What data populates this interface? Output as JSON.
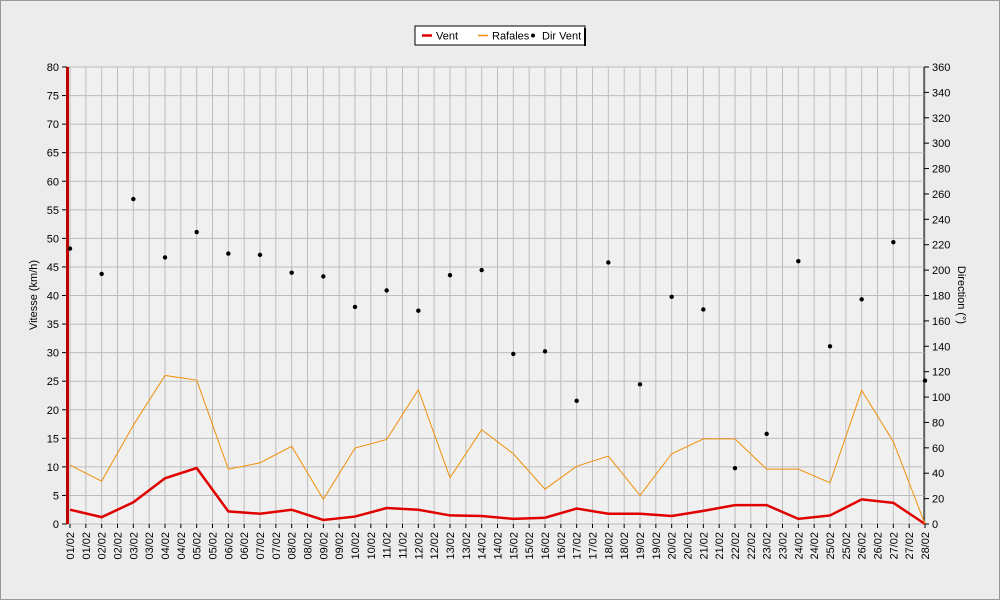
{
  "chart_data": {
    "type": "line",
    "x": [
      1,
      2,
      3,
      4,
      5,
      6,
      7,
      8,
      9,
      10,
      11,
      12,
      13,
      14,
      15,
      16,
      17,
      18,
      19,
      20,
      21,
      22,
      23,
      24,
      25,
      26,
      27,
      28
    ],
    "xlim": [
      1,
      28
    ],
    "xticks": [
      {
        "value": 1,
        "label": "01/02"
      },
      {
        "value": 1.5,
        "label": "01/02"
      },
      {
        "value": 2,
        "label": "02/02"
      },
      {
        "value": 2.5,
        "label": "02/02"
      },
      {
        "value": 3,
        "label": "03/02"
      },
      {
        "value": 3.5,
        "label": "03/02"
      },
      {
        "value": 4,
        "label": "04/02"
      },
      {
        "value": 4.5,
        "label": "04/02"
      },
      {
        "value": 5,
        "label": "05/02"
      },
      {
        "value": 5.5,
        "label": "05/02"
      },
      {
        "value": 6,
        "label": "06/02"
      },
      {
        "value": 6.5,
        "label": "06/02"
      },
      {
        "value": 7,
        "label": "07/02"
      },
      {
        "value": 7.5,
        "label": "07/02"
      },
      {
        "value": 8,
        "label": "08/02"
      },
      {
        "value": 8.5,
        "label": "08/02"
      },
      {
        "value": 9,
        "label": "09/02"
      },
      {
        "value": 9.5,
        "label": "09/02"
      },
      {
        "value": 10,
        "label": "10/02"
      },
      {
        "value": 10.5,
        "label": "10/02"
      },
      {
        "value": 11,
        "label": "11/02"
      },
      {
        "value": 11.5,
        "label": "11/02"
      },
      {
        "value": 12,
        "label": "12/02"
      },
      {
        "value": 12.5,
        "label": "12/02"
      },
      {
        "value": 13,
        "label": "13/02"
      },
      {
        "value": 13.5,
        "label": "13/02"
      },
      {
        "value": 14,
        "label": "14/02"
      },
      {
        "value": 14.5,
        "label": "14/02"
      },
      {
        "value": 15,
        "label": "15/02"
      },
      {
        "value": 15.5,
        "label": "15/02"
      },
      {
        "value": 16,
        "label": "16/02"
      },
      {
        "value": 16.5,
        "label": "16/02"
      },
      {
        "value": 17,
        "label": "17/02"
      },
      {
        "value": 17.5,
        "label": "17/02"
      },
      {
        "value": 18,
        "label": "18/02"
      },
      {
        "value": 18.5,
        "label": "18/02"
      },
      {
        "value": 19,
        "label": "19/02"
      },
      {
        "value": 19.5,
        "label": "19/02"
      },
      {
        "value": 20,
        "label": "20/02"
      },
      {
        "value": 20.5,
        "label": "20/02"
      },
      {
        "value": 21,
        "label": "21/02"
      },
      {
        "value": 21.5,
        "label": "21/02"
      },
      {
        "value": 22,
        "label": "22/02"
      },
      {
        "value": 22.5,
        "label": "22/02"
      },
      {
        "value": 23,
        "label": "23/02"
      },
      {
        "value": 23.5,
        "label": "23/02"
      },
      {
        "value": 24,
        "label": "24/02"
      },
      {
        "value": 24.5,
        "label": "24/02"
      },
      {
        "value": 25,
        "label": "25/02"
      },
      {
        "value": 25.5,
        "label": "25/02"
      },
      {
        "value": 26,
        "label": "26/02"
      },
      {
        "value": 26.5,
        "label": "26/02"
      },
      {
        "value": 27,
        "label": "27/02"
      },
      {
        "value": 27.5,
        "label": "27/02"
      },
      {
        "value": 28,
        "label": "28/02"
      }
    ],
    "ylabel": "Vitesse (km/h)",
    "ylim": [
      0,
      80
    ],
    "yticks": [
      0,
      5,
      10,
      15,
      20,
      25,
      30,
      35,
      40,
      45,
      50,
      55,
      60,
      65,
      70,
      75,
      80
    ],
    "y2label": "Direction (°)",
    "y2lim": [
      0,
      360
    ],
    "y2ticks": [
      0,
      20,
      40,
      60,
      80,
      100,
      120,
      140,
      160,
      180,
      200,
      220,
      240,
      260,
      280,
      300,
      320,
      340,
      360
    ],
    "grid": true,
    "legend": "top",
    "series": [
      {
        "name": "Vent",
        "color": "#e00000",
        "style": "line",
        "values": [
          2.5,
          1.2,
          3.8,
          8,
          9.8,
          2.2,
          1.8,
          2.5,
          0.7,
          1.3,
          2.8,
          2.5,
          1.5,
          1.4,
          0.9,
          1.1,
          2.7,
          1.8,
          1.8,
          1.4,
          2.3,
          3.3,
          3.3,
          0.9,
          1.5,
          4.3,
          3.7,
          0
        ]
      },
      {
        "name": "Rafales",
        "color": "#f0900a",
        "style": "line",
        "values": [
          10.3,
          7.5,
          17.3,
          26,
          25.2,
          9.6,
          10.7,
          13.6,
          4.3,
          13.3,
          14.8,
          23.5,
          8.1,
          16.5,
          12.3,
          6.1,
          10.1,
          11.9,
          5,
          12.3,
          14.9,
          14.9,
          9.6,
          9.6,
          7.2,
          23.4,
          14.4,
          0
        ]
      },
      {
        "name": "Dir Vent",
        "color": "#000000",
        "style": "points",
        "axis": "y2",
        "values": [
          217,
          197,
          256,
          210,
          230,
          213,
          212,
          198,
          195,
          171,
          184,
          168,
          196,
          200,
          134,
          136,
          97,
          206,
          110,
          179,
          169,
          44,
          71,
          207,
          140,
          177,
          222,
          113
        ]
      }
    ]
  }
}
